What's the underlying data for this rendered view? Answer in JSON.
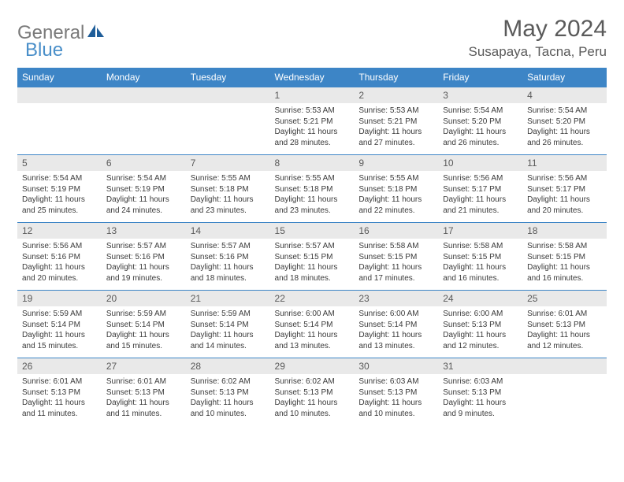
{
  "logo": {
    "text1": "General",
    "text2": "Blue"
  },
  "title": "May 2024",
  "location": "Susapaya, Tacna, Peru",
  "colors": {
    "header_bg": "#3d85c6",
    "header_text": "#ffffff",
    "daynum_bg": "#e9e9e9",
    "text_gray": "#5a5a5a",
    "body_text": "#3a3a3a",
    "logo_gray": "#7a7a7a",
    "logo_blue": "#4a8fc9"
  },
  "weekdays": [
    "Sunday",
    "Monday",
    "Tuesday",
    "Wednesday",
    "Thursday",
    "Friday",
    "Saturday"
  ],
  "weeks": [
    [
      null,
      null,
      null,
      {
        "n": "1",
        "sr": "5:53 AM",
        "ss": "5:21 PM",
        "dl": "11 hours and 28 minutes."
      },
      {
        "n": "2",
        "sr": "5:53 AM",
        "ss": "5:21 PM",
        "dl": "11 hours and 27 minutes."
      },
      {
        "n": "3",
        "sr": "5:54 AM",
        "ss": "5:20 PM",
        "dl": "11 hours and 26 minutes."
      },
      {
        "n": "4",
        "sr": "5:54 AM",
        "ss": "5:20 PM",
        "dl": "11 hours and 26 minutes."
      }
    ],
    [
      {
        "n": "5",
        "sr": "5:54 AM",
        "ss": "5:19 PM",
        "dl": "11 hours and 25 minutes."
      },
      {
        "n": "6",
        "sr": "5:54 AM",
        "ss": "5:19 PM",
        "dl": "11 hours and 24 minutes."
      },
      {
        "n": "7",
        "sr": "5:55 AM",
        "ss": "5:18 PM",
        "dl": "11 hours and 23 minutes."
      },
      {
        "n": "8",
        "sr": "5:55 AM",
        "ss": "5:18 PM",
        "dl": "11 hours and 23 minutes."
      },
      {
        "n": "9",
        "sr": "5:55 AM",
        "ss": "5:18 PM",
        "dl": "11 hours and 22 minutes."
      },
      {
        "n": "10",
        "sr": "5:56 AM",
        "ss": "5:17 PM",
        "dl": "11 hours and 21 minutes."
      },
      {
        "n": "11",
        "sr": "5:56 AM",
        "ss": "5:17 PM",
        "dl": "11 hours and 20 minutes."
      }
    ],
    [
      {
        "n": "12",
        "sr": "5:56 AM",
        "ss": "5:16 PM",
        "dl": "11 hours and 20 minutes."
      },
      {
        "n": "13",
        "sr": "5:57 AM",
        "ss": "5:16 PM",
        "dl": "11 hours and 19 minutes."
      },
      {
        "n": "14",
        "sr": "5:57 AM",
        "ss": "5:16 PM",
        "dl": "11 hours and 18 minutes."
      },
      {
        "n": "15",
        "sr": "5:57 AM",
        "ss": "5:15 PM",
        "dl": "11 hours and 18 minutes."
      },
      {
        "n": "16",
        "sr": "5:58 AM",
        "ss": "5:15 PM",
        "dl": "11 hours and 17 minutes."
      },
      {
        "n": "17",
        "sr": "5:58 AM",
        "ss": "5:15 PM",
        "dl": "11 hours and 16 minutes."
      },
      {
        "n": "18",
        "sr": "5:58 AM",
        "ss": "5:15 PM",
        "dl": "11 hours and 16 minutes."
      }
    ],
    [
      {
        "n": "19",
        "sr": "5:59 AM",
        "ss": "5:14 PM",
        "dl": "11 hours and 15 minutes."
      },
      {
        "n": "20",
        "sr": "5:59 AM",
        "ss": "5:14 PM",
        "dl": "11 hours and 15 minutes."
      },
      {
        "n": "21",
        "sr": "5:59 AM",
        "ss": "5:14 PM",
        "dl": "11 hours and 14 minutes."
      },
      {
        "n": "22",
        "sr": "6:00 AM",
        "ss": "5:14 PM",
        "dl": "11 hours and 13 minutes."
      },
      {
        "n": "23",
        "sr": "6:00 AM",
        "ss": "5:14 PM",
        "dl": "11 hours and 13 minutes."
      },
      {
        "n": "24",
        "sr": "6:00 AM",
        "ss": "5:13 PM",
        "dl": "11 hours and 12 minutes."
      },
      {
        "n": "25",
        "sr": "6:01 AM",
        "ss": "5:13 PM",
        "dl": "11 hours and 12 minutes."
      }
    ],
    [
      {
        "n": "26",
        "sr": "6:01 AM",
        "ss": "5:13 PM",
        "dl": "11 hours and 11 minutes."
      },
      {
        "n": "27",
        "sr": "6:01 AM",
        "ss": "5:13 PM",
        "dl": "11 hours and 11 minutes."
      },
      {
        "n": "28",
        "sr": "6:02 AM",
        "ss": "5:13 PM",
        "dl": "11 hours and 10 minutes."
      },
      {
        "n": "29",
        "sr": "6:02 AM",
        "ss": "5:13 PM",
        "dl": "11 hours and 10 minutes."
      },
      {
        "n": "30",
        "sr": "6:03 AM",
        "ss": "5:13 PM",
        "dl": "11 hours and 10 minutes."
      },
      {
        "n": "31",
        "sr": "6:03 AM",
        "ss": "5:13 PM",
        "dl": "11 hours and 9 minutes."
      },
      null
    ]
  ],
  "labels": {
    "sunrise": "Sunrise:",
    "sunset": "Sunset:",
    "daylight": "Daylight:"
  }
}
